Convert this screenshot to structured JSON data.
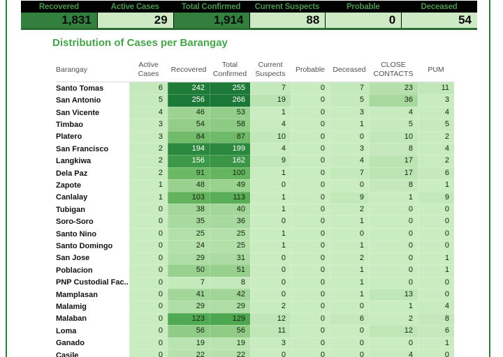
{
  "page": {
    "border_color": "#2e7d32",
    "background": "#ffffff"
  },
  "summary": {
    "labels_bg": "#000000",
    "label_color": "#4f9351",
    "dark_cell_bg": "#337f3e",
    "light_cell_bg": "#cdeac4",
    "cards": [
      {
        "label": "Recovered",
        "value": "1,831",
        "emphasis": true
      },
      {
        "label": "Active Cases",
        "value": "29",
        "emphasis": false
      },
      {
        "label": "Total Confirmed",
        "value": "1,914",
        "emphasis": true
      },
      {
        "label": "Current Suspects",
        "value": "88",
        "emphasis": false
      },
      {
        "label": "Probable",
        "value": "0",
        "emphasis": false
      },
      {
        "label": "Deceased",
        "value": "54",
        "emphasis": false
      }
    ]
  },
  "table": {
    "title": "Distribution of Cases per Barangay",
    "title_color": "#46a34a",
    "header_labels": [
      "Barangay",
      "Active\nCases",
      "Recovered",
      "Total\nConfirmed",
      "Current\nSuspects",
      "Probable",
      "Deceased",
      "CLOSE\nCONTACTS",
      "PUM"
    ]
  },
  "chart_data": {
    "type": "heatmap",
    "title": "Distribution of Cases per Barangay",
    "columns": [
      "Active Cases",
      "Recovered",
      "Total Confirmed",
      "Current Suspects",
      "Probable",
      "Deceased",
      "CLOSE CONTACTS",
      "PUM"
    ],
    "rows": [
      {
        "barangay": "Santo Tomas",
        "values": [
          6,
          242,
          255,
          7,
          0,
          7,
          23,
          11
        ]
      },
      {
        "barangay": "San Antonio",
        "values": [
          5,
          256,
          266,
          19,
          0,
          5,
          36,
          3
        ]
      },
      {
        "barangay": "San Vicente",
        "values": [
          4,
          46,
          53,
          1,
          0,
          3,
          4,
          4
        ]
      },
      {
        "barangay": "Timbao",
        "values": [
          3,
          54,
          58,
          4,
          0,
          1,
          5,
          5
        ]
      },
      {
        "barangay": "Platero",
        "values": [
          3,
          84,
          87,
          10,
          0,
          0,
          10,
          2
        ]
      },
      {
        "barangay": "San Francisco",
        "values": [
          2,
          194,
          199,
          4,
          0,
          3,
          8,
          4
        ]
      },
      {
        "barangay": "Langkiwa",
        "values": [
          2,
          156,
          162,
          9,
          0,
          4,
          17,
          2
        ]
      },
      {
        "barangay": "Dela Paz",
        "values": [
          2,
          91,
          100,
          1,
          0,
          7,
          17,
          6
        ]
      },
      {
        "barangay": "Zapote",
        "values": [
          1,
          48,
          49,
          0,
          0,
          0,
          8,
          1
        ]
      },
      {
        "barangay": "Canlalay",
        "values": [
          1,
          103,
          113,
          1,
          0,
          9,
          1,
          9
        ]
      },
      {
        "barangay": "Tubigan",
        "values": [
          0,
          38,
          40,
          1,
          0,
          2,
          0,
          0
        ]
      },
      {
        "barangay": "Soro-Soro",
        "values": [
          0,
          35,
          36,
          0,
          0,
          1,
          0,
          0
        ]
      },
      {
        "barangay": "Santo Nino",
        "values": [
          0,
          25,
          25,
          1,
          0,
          0,
          0,
          0
        ]
      },
      {
        "barangay": "Santo Domingo",
        "values": [
          0,
          24,
          25,
          1,
          0,
          1,
          0,
          0
        ]
      },
      {
        "barangay": "San Jose",
        "values": [
          0,
          29,
          31,
          0,
          0,
          2,
          0,
          1
        ]
      },
      {
        "barangay": "Poblacion",
        "values": [
          0,
          50,
          51,
          0,
          0,
          1,
          0,
          1
        ]
      },
      {
        "barangay": "PNP Custodial Fac..",
        "values": [
          0,
          7,
          8,
          0,
          0,
          1,
          0,
          0
        ]
      },
      {
        "barangay": "Mamplasan",
        "values": [
          0,
          41,
          42,
          0,
          0,
          1,
          13,
          0
        ]
      },
      {
        "barangay": "Malamig",
        "values": [
          0,
          29,
          29,
          2,
          0,
          0,
          1,
          4
        ]
      },
      {
        "barangay": "Malaban",
        "values": [
          0,
          123,
          129,
          12,
          0,
          6,
          2,
          8
        ]
      },
      {
        "barangay": "Loma",
        "values": [
          0,
          56,
          56,
          11,
          0,
          0,
          12,
          6
        ]
      },
      {
        "barangay": "Ganado",
        "values": [
          0,
          19,
          19,
          3,
          0,
          0,
          0,
          1
        ]
      },
      {
        "barangay": "Casile",
        "values": [
          0,
          22,
          22,
          0,
          0,
          0,
          4,
          0
        ]
      }
    ],
    "summary": {
      "Recovered": 1831,
      "Active Cases": 29,
      "Total Confirmed": 1914,
      "Current Suspects": 88,
      "Probable": 0,
      "Deceased": 54
    },
    "color_scale": {
      "min": 0,
      "max": 266,
      "low": "#caecc1",
      "high": "#1a7736",
      "white_text_threshold": 140
    },
    "legend_position": "none",
    "grid": false
  }
}
